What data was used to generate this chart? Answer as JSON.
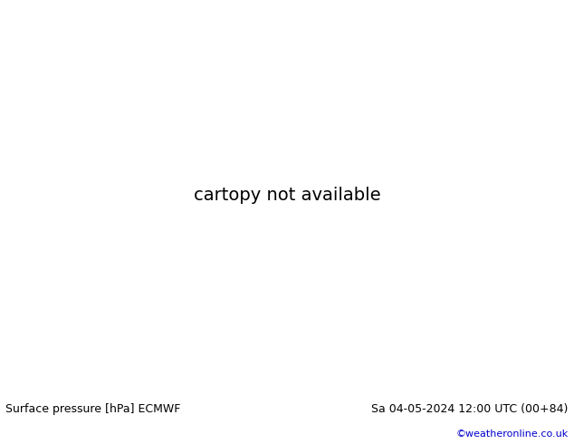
{
  "title_left": "Surface pressure [hPa] ECMWF",
  "title_right": "Sa 04-05-2024 12:00 UTC (00+84)",
  "credit": "©weatheronline.co.uk",
  "land_color": "#b5e6a2",
  "ocean_color": "#d8eef5",
  "border_color": "#aaaaaa",
  "isobar_color": "#0044cc",
  "black_isobar_color": "#000000",
  "red_isobar_color": "#cc0000",
  "front_red": "#dd0000",
  "front_black": "#000000",
  "bottom_bar_color": "#ffffff",
  "text_color": "#000000",
  "credit_color": "#0000cc",
  "fig_width": 6.34,
  "fig_height": 4.9,
  "dpi": 100,
  "lon_min": 20,
  "lon_max": 140,
  "lat_min": 5,
  "lat_max": 65
}
